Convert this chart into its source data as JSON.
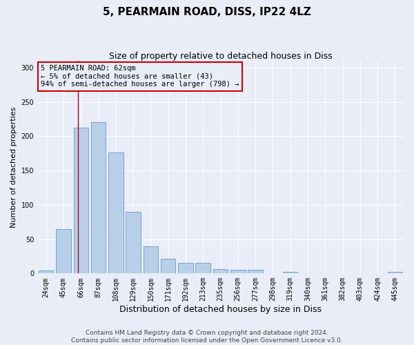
{
  "title": "5, PEARMAIN ROAD, DISS, IP22 4LZ",
  "subtitle": "Size of property relative to detached houses in Diss",
  "xlabel": "Distribution of detached houses by size in Diss",
  "ylabel": "Number of detached properties",
  "categories": [
    "24sqm",
    "45sqm",
    "66sqm",
    "87sqm",
    "108sqm",
    "129sqm",
    "150sqm",
    "171sqm",
    "192sqm",
    "213sqm",
    "235sqm",
    "256sqm",
    "277sqm",
    "298sqm",
    "319sqm",
    "340sqm",
    "361sqm",
    "382sqm",
    "403sqm",
    "424sqm",
    "445sqm"
  ],
  "values": [
    4,
    65,
    212,
    221,
    176,
    90,
    40,
    21,
    15,
    15,
    6,
    5,
    5,
    0,
    2,
    0,
    0,
    0,
    0,
    0,
    2
  ],
  "bar_color": "#b8cfe8",
  "bar_edge_color": "#6699cc",
  "bg_color": "#e8edf8",
  "grid_color": "#ffffff",
  "vline_x": 1.82,
  "vline_color": "#cc0000",
  "annotation_text": "5 PEARMAIN ROAD: 62sqm\n← 5% of detached houses are smaller (43)\n94% of semi-detached houses are larger (798) →",
  "annotation_box_color": "#cc0000",
  "ylim": [
    0,
    310
  ],
  "yticks": [
    0,
    50,
    100,
    150,
    200,
    250,
    300
  ],
  "footnote": "Contains HM Land Registry data © Crown copyright and database right 2024.\nContains public sector information licensed under the Open Government Licence v3.0.",
  "title_fontsize": 11,
  "subtitle_fontsize": 9,
  "xlabel_fontsize": 9,
  "ylabel_fontsize": 8,
  "tick_fontsize": 7,
  "annot_fontsize": 7.5,
  "footnote_fontsize": 6.5
}
